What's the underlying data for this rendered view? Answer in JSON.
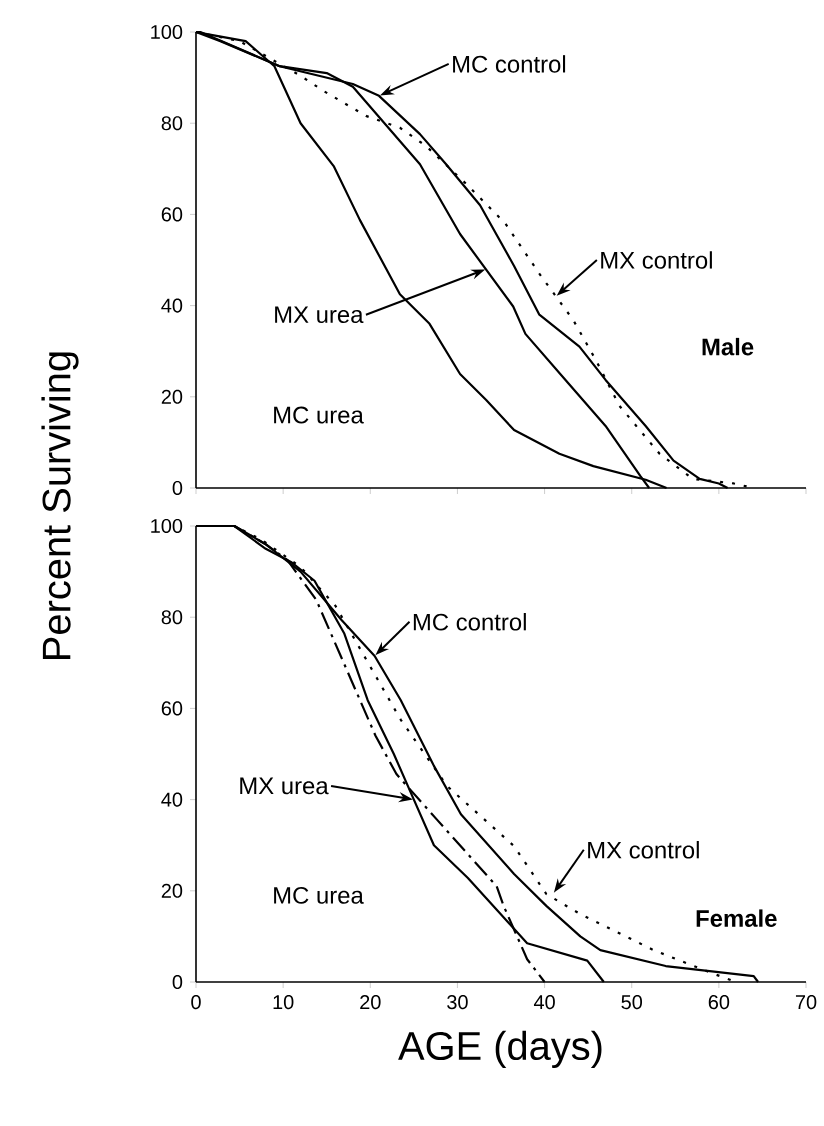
{
  "chart_data": [
    {
      "type": "line",
      "ylabel": "Percent Surviving",
      "xlim": [
        0,
        70
      ],
      "ylim": [
        0,
        100
      ],
      "xticks": [
        0,
        10,
        20,
        30,
        40,
        50,
        60,
        70
      ],
      "yticks": [
        0,
        20,
        40,
        60,
        80,
        100
      ],
      "tick_labels": "y",
      "series": [
        {
          "color": "#000000",
          "line_style": "solid",
          "x": [
            0,
            0.5,
            9.6,
            18,
            21,
            25.7,
            28.7,
            32.6,
            36.5,
            39.4,
            44,
            47,
            51.6,
            54.8,
            57.8,
            60,
            61
          ],
          "values": [
            100,
            100,
            92.5,
            88.6,
            86,
            77.6,
            71,
            62,
            48.7,
            38,
            31,
            23.7,
            13.6,
            6,
            2,
            1,
            0
          ]
        },
        {
          "color": "#000000",
          "line_style": "dotted",
          "x": [
            0,
            5,
            12,
            14.7,
            19.5,
            23.4,
            26.4,
            31,
            35.5,
            39.4,
            43.3,
            45.9,
            48.6,
            53.2,
            57,
            61.7,
            64
          ],
          "values": [
            100,
            98,
            90.4,
            87,
            81.6,
            79,
            75,
            66.7,
            58,
            47,
            36.8,
            28,
            18,
            7.5,
            2,
            1,
            0
          ]
        },
        {
          "color": "#000000",
          "line_style": "solid",
          "x": [
            0,
            2.8,
            9.6,
            15,
            18,
            25.7,
            30.3,
            36.4,
            37.8,
            42.4,
            47,
            51,
            52
          ],
          "values": [
            100,
            98,
            92.5,
            91,
            88,
            71,
            55.7,
            39.8,
            33.8,
            23.7,
            13.6,
            2.6,
            0
          ]
        },
        {
          "color": "#000000",
          "line_style": "solid",
          "x": [
            0,
            1.1,
            5.7,
            9,
            12,
            15.8,
            18.8,
            23.4,
            26.8,
            30.3,
            33.3,
            36.5,
            41.7,
            45.6,
            51.6,
            54
          ],
          "values": [
            100,
            99.6,
            98,
            92.5,
            80,
            70.6,
            58.8,
            42.5,
            36,
            25,
            19.3,
            12.7,
            7.5,
            4.8,
            1.8,
            0
          ]
        }
      ],
      "annotations": [
        {
          "text": "MC control",
          "x": 21,
          "y": 86
        },
        {
          "text": "MX control",
          "x": 41.3,
          "y": 42
        },
        {
          "text": "MX urea",
          "x": 33.3,
          "y": 48
        },
        "MC urea",
        "Male"
      ]
    },
    {
      "type": "line",
      "xlabel": "AGE (days)",
      "xlim": [
        0,
        70
      ],
      "ylim": [
        0,
        100
      ],
      "xticks": [
        0,
        10,
        20,
        30,
        40,
        50,
        60,
        70
      ],
      "yticks": [
        0,
        20,
        40,
        60,
        80,
        100
      ],
      "series": [
        {
          "color": "#000000",
          "line_style": "solid",
          "x": [
            0,
            4.4,
            8,
            12,
            16.7,
            20.5,
            23.5,
            27.3,
            30.4,
            36.5,
            40.2,
            44.1,
            46.4,
            53.9,
            64,
            64.5
          ],
          "values": [
            100,
            100,
            96,
            90,
            79.4,
            71.5,
            61.8,
            47.4,
            36.8,
            23.7,
            16.7,
            10,
            7,
            3.5,
            1.3,
            0
          ]
        },
        {
          "color": "#000000",
          "line_style": "dotted",
          "x": [
            0,
            4.4,
            7.5,
            12,
            16,
            23.5,
            28.8,
            36.5,
            40.2,
            44,
            52.5,
            59.4,
            62
          ],
          "values": [
            100,
            100,
            97,
            91,
            82.5,
            57.5,
            43,
            29.8,
            19.3,
            15,
            7,
            1.8,
            0
          ]
        },
        {
          "color": "#000000",
          "line_style": "solid",
          "x": [
            0,
            4.4,
            8,
            11,
            13.6,
            17,
            19.7,
            22.7,
            25,
            27.3,
            31.2,
            38,
            44.9,
            46.8
          ],
          "values": [
            100,
            100,
            95,
            92,
            88,
            76.5,
            61.8,
            50,
            40,
            30,
            22.8,
            8.5,
            4.7,
            0
          ]
        },
        {
          "color": "#000000",
          "line_style": "dashed",
          "x": [
            0,
            4.4,
            8,
            10.5,
            13.8,
            20.6,
            23,
            27.7,
            34.5,
            35.3,
            38,
            40
          ],
          "values": [
            100,
            100,
            96,
            92.5,
            83.8,
            54,
            45.6,
            35.5,
            21,
            16.7,
            5,
            0
          ]
        }
      ],
      "annotations": [
        {
          "text": "MC control",
          "x": 20.5,
          "y": 71.5
        },
        {
          "text": "MX urea",
          "x": 25,
          "y": 40
        },
        {
          "text": "MX control",
          "x": 41,
          "y": 19.4
        },
        "MC urea",
        "Female"
      ]
    }
  ]
}
